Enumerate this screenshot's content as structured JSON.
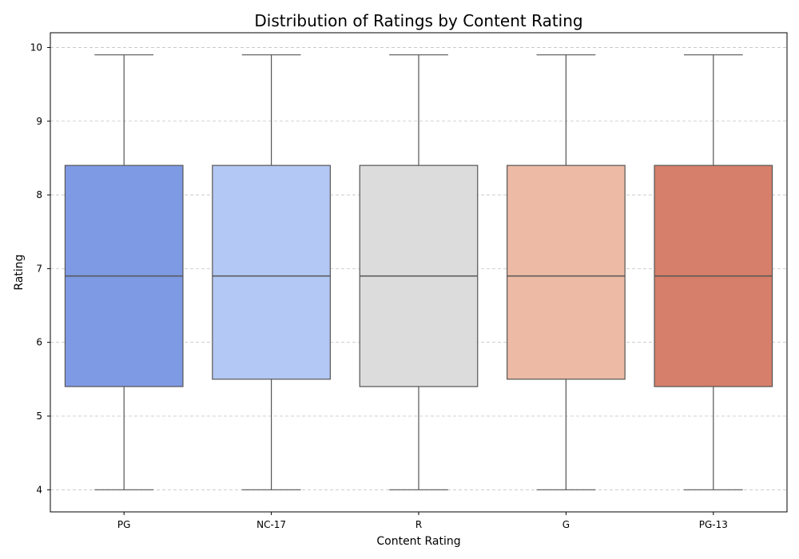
{
  "chart_data": {
    "type": "box",
    "title": "Distribution of Ratings by Content Rating",
    "xlabel": "Content Rating",
    "ylabel": "Rating",
    "ylim": [
      3.7,
      10.2
    ],
    "yticks": [
      4,
      5,
      6,
      7,
      8,
      9,
      10
    ],
    "grid": "horizontal-dashed",
    "categories": [
      "PG",
      "NC-17",
      "R",
      "G",
      "PG-13"
    ],
    "boxes": [
      {
        "category": "PG",
        "min": 4.0,
        "q1": 5.4,
        "median": 6.9,
        "q3": 8.4,
        "max": 9.9,
        "color": "#7f9ae4"
      },
      {
        "category": "NC-17",
        "min": 4.0,
        "q1": 5.5,
        "median": 6.9,
        "q3": 8.4,
        "max": 9.9,
        "color": "#b3c8f4"
      },
      {
        "category": "R",
        "min": 4.0,
        "q1": 5.4,
        "median": 6.9,
        "q3": 8.4,
        "max": 9.9,
        "color": "#dcdcdc"
      },
      {
        "category": "G",
        "min": 4.0,
        "q1": 5.5,
        "median": 6.9,
        "q3": 8.4,
        "max": 9.9,
        "color": "#ecbaa5"
      },
      {
        "category": "PG-13",
        "min": 4.0,
        "q1": 5.4,
        "median": 6.9,
        "q3": 8.4,
        "max": 9.9,
        "color": "#d67f6a"
      }
    ]
  }
}
